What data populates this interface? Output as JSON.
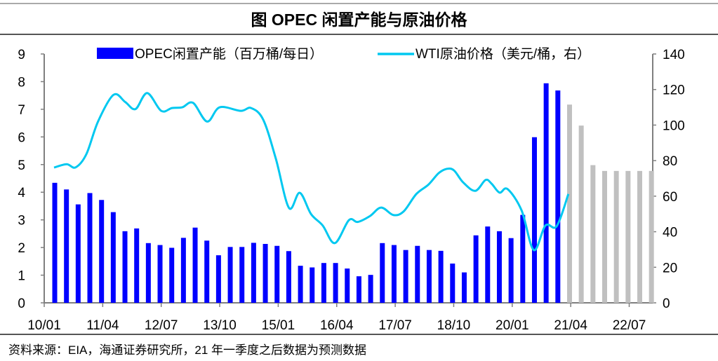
{
  "title": "图  OPEC 闲置产能与原油价格",
  "source": "资料来源：EIA，海通证券研究所，21 年一季度之后数据为预测数据",
  "chart_data": {
    "type": "bar+line",
    "title": "图  OPEC 闲置产能与原油价格",
    "legend_position": "top",
    "colors": {
      "actual_bar": "#0000FF",
      "forecast_bar": "#C0C0C0",
      "line": "#00C8F0",
      "axis": "#7f7f7f"
    },
    "x_tick_labels": [
      "10/01",
      "11/04",
      "12/07",
      "13/10",
      "15/01",
      "16/04",
      "17/07",
      "18/10",
      "20/01",
      "21/04",
      "22/07"
    ],
    "quarters_start": "2010Q1",
    "left_axis": {
      "label": "OPEC闲置产能（百万桶/每日）",
      "ylim": [
        0,
        9
      ],
      "ticks": [
        "0",
        "1",
        "2",
        "3",
        "4",
        "5",
        "6",
        "7",
        "8",
        "9"
      ]
    },
    "right_axis": {
      "label": "WTI原油价格（美元/桶，右）",
      "ylim": [
        0,
        140
      ],
      "ticks": [
        "0",
        "20",
        "40",
        "60",
        "80",
        "100",
        "120",
        "140"
      ]
    },
    "series": [
      {
        "name": "OPEC闲置产能（百万桶/每日）",
        "type": "bar",
        "axis": "left",
        "values": [
          4.34,
          4.1,
          3.56,
          3.97,
          3.72,
          3.28,
          2.59,
          2.69,
          2.16,
          2.09,
          1.99,
          2.35,
          2.72,
          2.25,
          1.72,
          2.02,
          2.02,
          2.17,
          2.13,
          2.06,
          1.87,
          1.34,
          1.28,
          1.44,
          1.44,
          1.24,
          0.96,
          1.01,
          2.16,
          2.09,
          1.91,
          2.06,
          1.91,
          1.88,
          1.42,
          1.1,
          2.44,
          2.76,
          2.59,
          2.34,
          3.18,
          5.99,
          7.94,
          7.68,
          7.17,
          6.41,
          4.98,
          4.77,
          4.77,
          4.77,
          4.77,
          4.77
        ],
        "forecast_from_index": 44
      },
      {
        "name": "WTI原油价格（美元/桶，右）",
        "type": "line",
        "axis": "right",
        "x_year": [
          2010.21,
          2010.48,
          2010.67,
          2010.9,
          2011.15,
          2011.48,
          2011.73,
          2011.95,
          2012.2,
          2012.5,
          2012.73,
          2012.95,
          2013.18,
          2013.48,
          2013.75,
          2014.2,
          2014.42,
          2014.68,
          2014.95,
          2015.23,
          2015.46,
          2015.7,
          2015.95,
          2016.21,
          2016.51,
          2016.7,
          2016.96,
          2017.2,
          2017.46,
          2017.68,
          2017.95,
          2018.21,
          2018.43,
          2018.61,
          2018.76,
          2018.95,
          2019.21,
          2019.43,
          2019.56,
          2019.73,
          2019.9,
          2020.2,
          2020.46,
          2020.71,
          2020.95,
          2021.2
        ],
        "values": [
          76.1,
          78,
          76.2,
          83.6,
          102,
          117,
          113,
          109,
          118,
          108,
          109.6,
          110,
          112.5,
          102,
          110,
          108,
          109.6,
          103,
          81,
          53.4,
          61.9,
          50,
          43.5,
          33.6,
          46.5,
          45.5,
          48.8,
          53.6,
          49.4,
          51.4,
          61.2,
          66.5,
          73,
          75.4,
          74.4,
          67.8,
          63,
          69.1,
          67,
          62,
          64,
          52,
          29.7,
          43.5,
          43.1,
          61.2
        ]
      }
    ]
  }
}
